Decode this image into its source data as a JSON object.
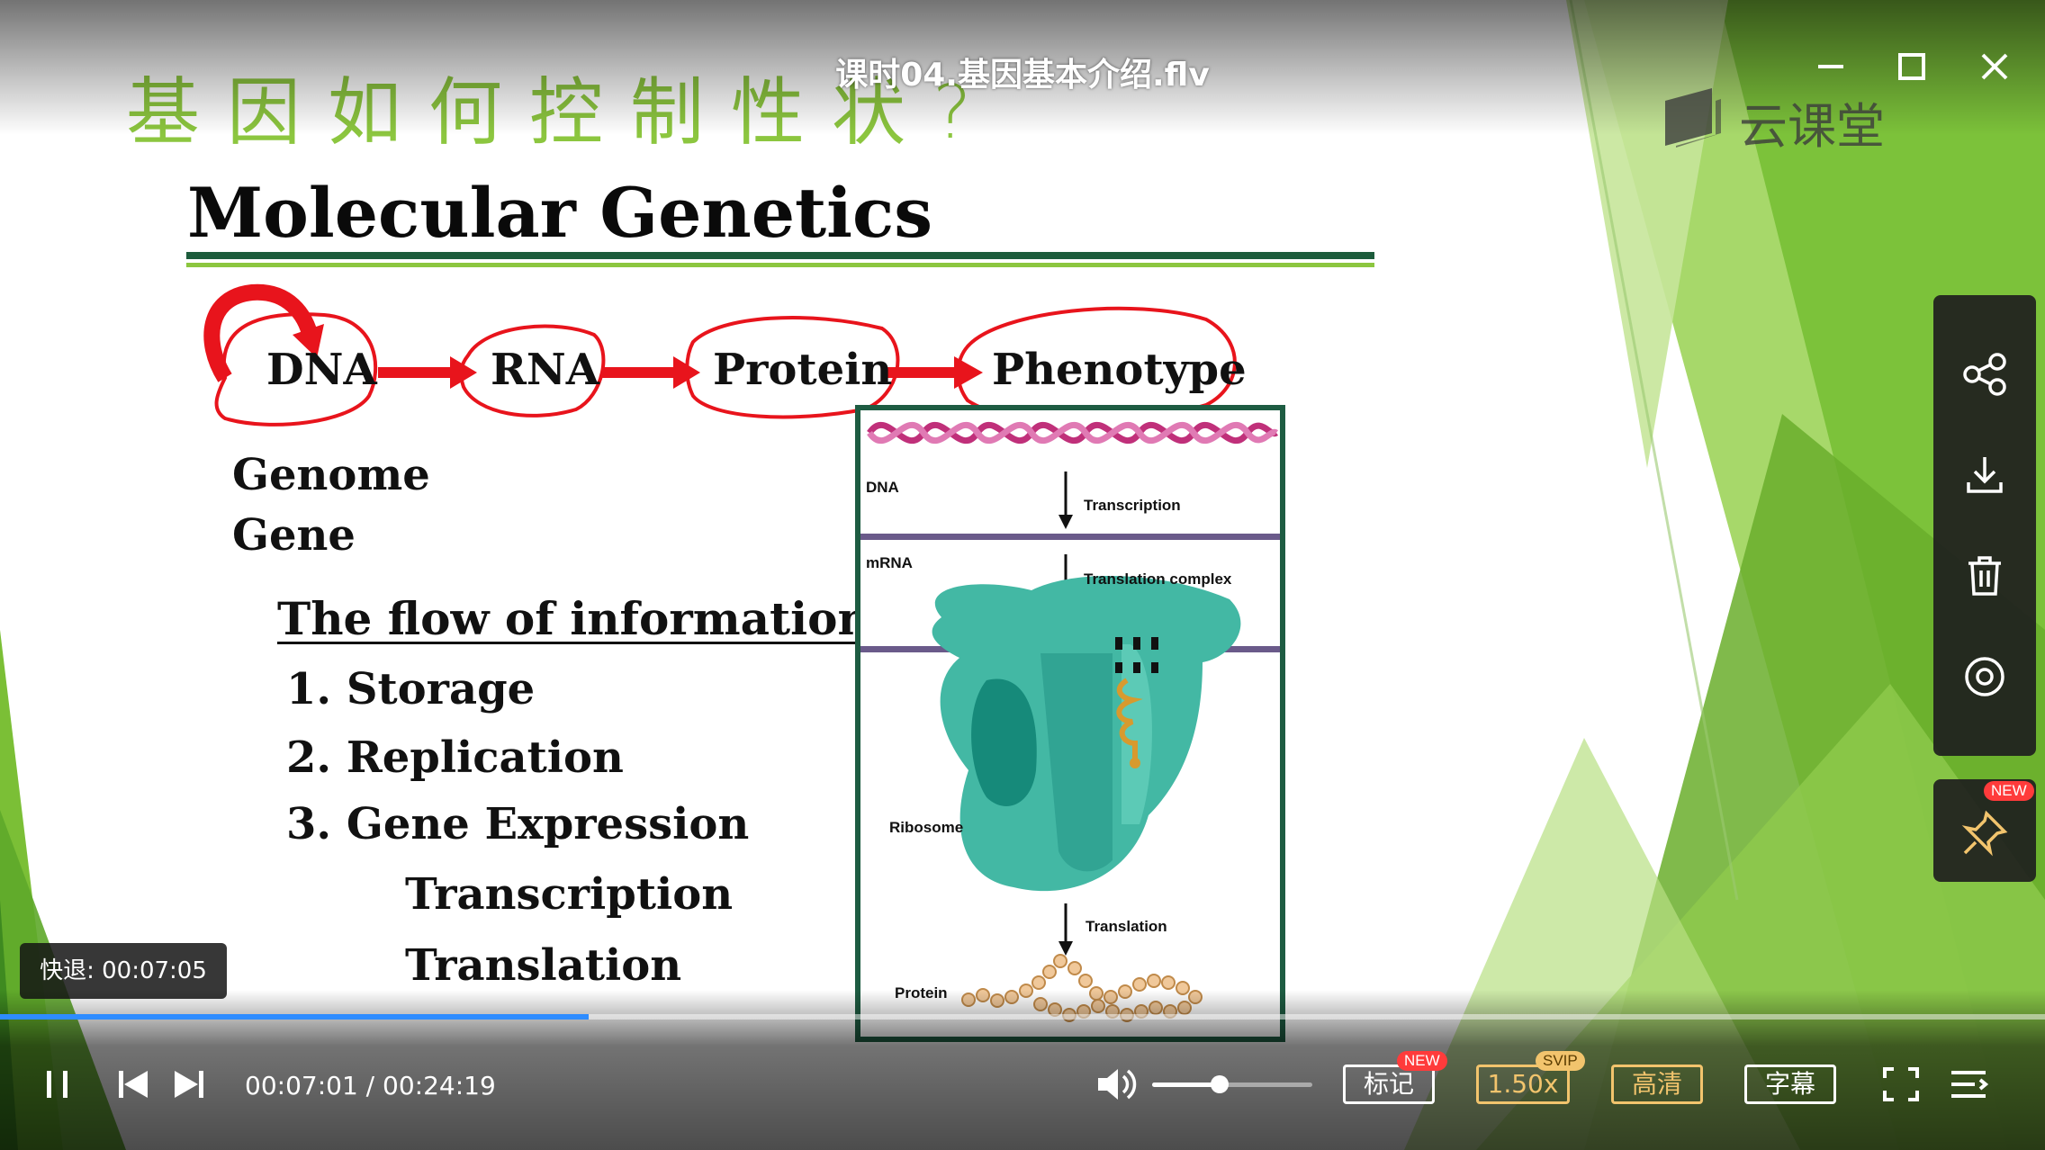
{
  "window": {
    "file_title": "课时04.基因基本介绍.flv",
    "brand_name": "云课堂",
    "accent_color": "#2e8cff",
    "icons": {
      "minimize": "minimize-icon",
      "maximize": "maximize-icon",
      "close": "close-icon"
    }
  },
  "slide": {
    "cn_title": "基因如何控制性状?",
    "heading": "Molecular Genetics",
    "flow_terms": [
      "DNA",
      "RNA",
      "Protein",
      "Phenotype"
    ],
    "left_terms": [
      "Genome",
      "Gene"
    ],
    "flow_heading": "The flow of information:",
    "list": [
      "1. Storage",
      "2. Replication",
      "3. Gene Expression"
    ],
    "sub_list": [
      "Transcription",
      "Translation"
    ],
    "diagram": {
      "dna": "DNA",
      "transcription": "Transcription",
      "mrna": "mRNA",
      "translation_complex": "Translation complex",
      "ribosome": "Ribosome",
      "translation": "Translation",
      "protein": "Protein"
    }
  },
  "side_panel": {
    "icons": [
      "share-icon",
      "download-icon",
      "trash-icon",
      "settings-icon"
    ],
    "pin_badge": "NEW"
  },
  "toast": {
    "text": "快退: 00:07:05"
  },
  "player": {
    "current_time": "00:07:01",
    "separator": "/",
    "duration": "00:24:19",
    "progress": 0.288,
    "volume": 0.42,
    "mark_label": "标记",
    "mark_badge": "NEW",
    "speed_label": "1.50x",
    "speed_badge": "SVIP",
    "quality_label": "高清",
    "subtitle_label": "字幕"
  }
}
